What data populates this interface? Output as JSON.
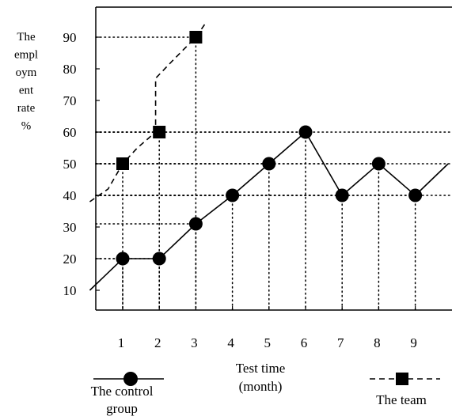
{
  "chart_data": {
    "type": "line",
    "ylabel_lines": [
      "The",
      "empl",
      "oym",
      "ent",
      "rate",
      "%"
    ],
    "xlabel_lines": [
      "Test time",
      "(month)"
    ],
    "x_ticks": [
      1,
      2,
      3,
      4,
      5,
      6,
      7,
      8,
      9
    ],
    "y_ticks": [
      10,
      20,
      30,
      40,
      50,
      60,
      70,
      80,
      90
    ],
    "grid": "dotted guide lines from points to axes",
    "legend_position": "bottom",
    "series": [
      {
        "key": "team",
        "legend_lines": [
          "The team"
        ],
        "marker": "square",
        "line_style": "dashed",
        "points": [
          {
            "x": 1,
            "y": 50
          },
          {
            "x": 2,
            "y": 60
          },
          {
            "x": 3,
            "y": 90
          }
        ],
        "path_extension": [
          {
            "x": 0.1,
            "y": 38
          },
          {
            "x": 0.6,
            "y": 42
          },
          {
            "x": 1,
            "y": 50
          },
          {
            "x": 1.4,
            "y": 55
          },
          {
            "x": 1.9,
            "y": 60
          },
          {
            "x": 1.9,
            "y": 77
          },
          {
            "x": 2.4,
            "y": 83
          },
          {
            "x": 3,
            "y": 90
          },
          {
            "x": 3.3,
            "y": 95
          }
        ]
      },
      {
        "key": "control",
        "legend_lines": [
          "The control",
          "group"
        ],
        "marker": "circle",
        "line_style": "solid",
        "points": [
          {
            "x": 1,
            "y": 20
          },
          {
            "x": 2,
            "y": 20
          },
          {
            "x": 3,
            "y": 31
          },
          {
            "x": 4,
            "y": 40
          },
          {
            "x": 5,
            "y": 50
          },
          {
            "x": 6,
            "y": 60
          },
          {
            "x": 7,
            "y": 40
          },
          {
            "x": 8,
            "y": 50
          },
          {
            "x": 9,
            "y": 40
          }
        ],
        "path_extension": [
          {
            "x": 0.1,
            "y": 10
          },
          {
            "x": 1,
            "y": 20
          },
          {
            "x": 2,
            "y": 20
          },
          {
            "x": 3,
            "y": 31
          },
          {
            "x": 4,
            "y": 40
          },
          {
            "x": 5,
            "y": 50
          },
          {
            "x": 6,
            "y": 60
          },
          {
            "x": 7,
            "y": 40
          },
          {
            "x": 8,
            "y": 50
          },
          {
            "x": 9,
            "y": 40
          },
          {
            "x": 9.9,
            "y": 50
          }
        ]
      }
    ]
  }
}
